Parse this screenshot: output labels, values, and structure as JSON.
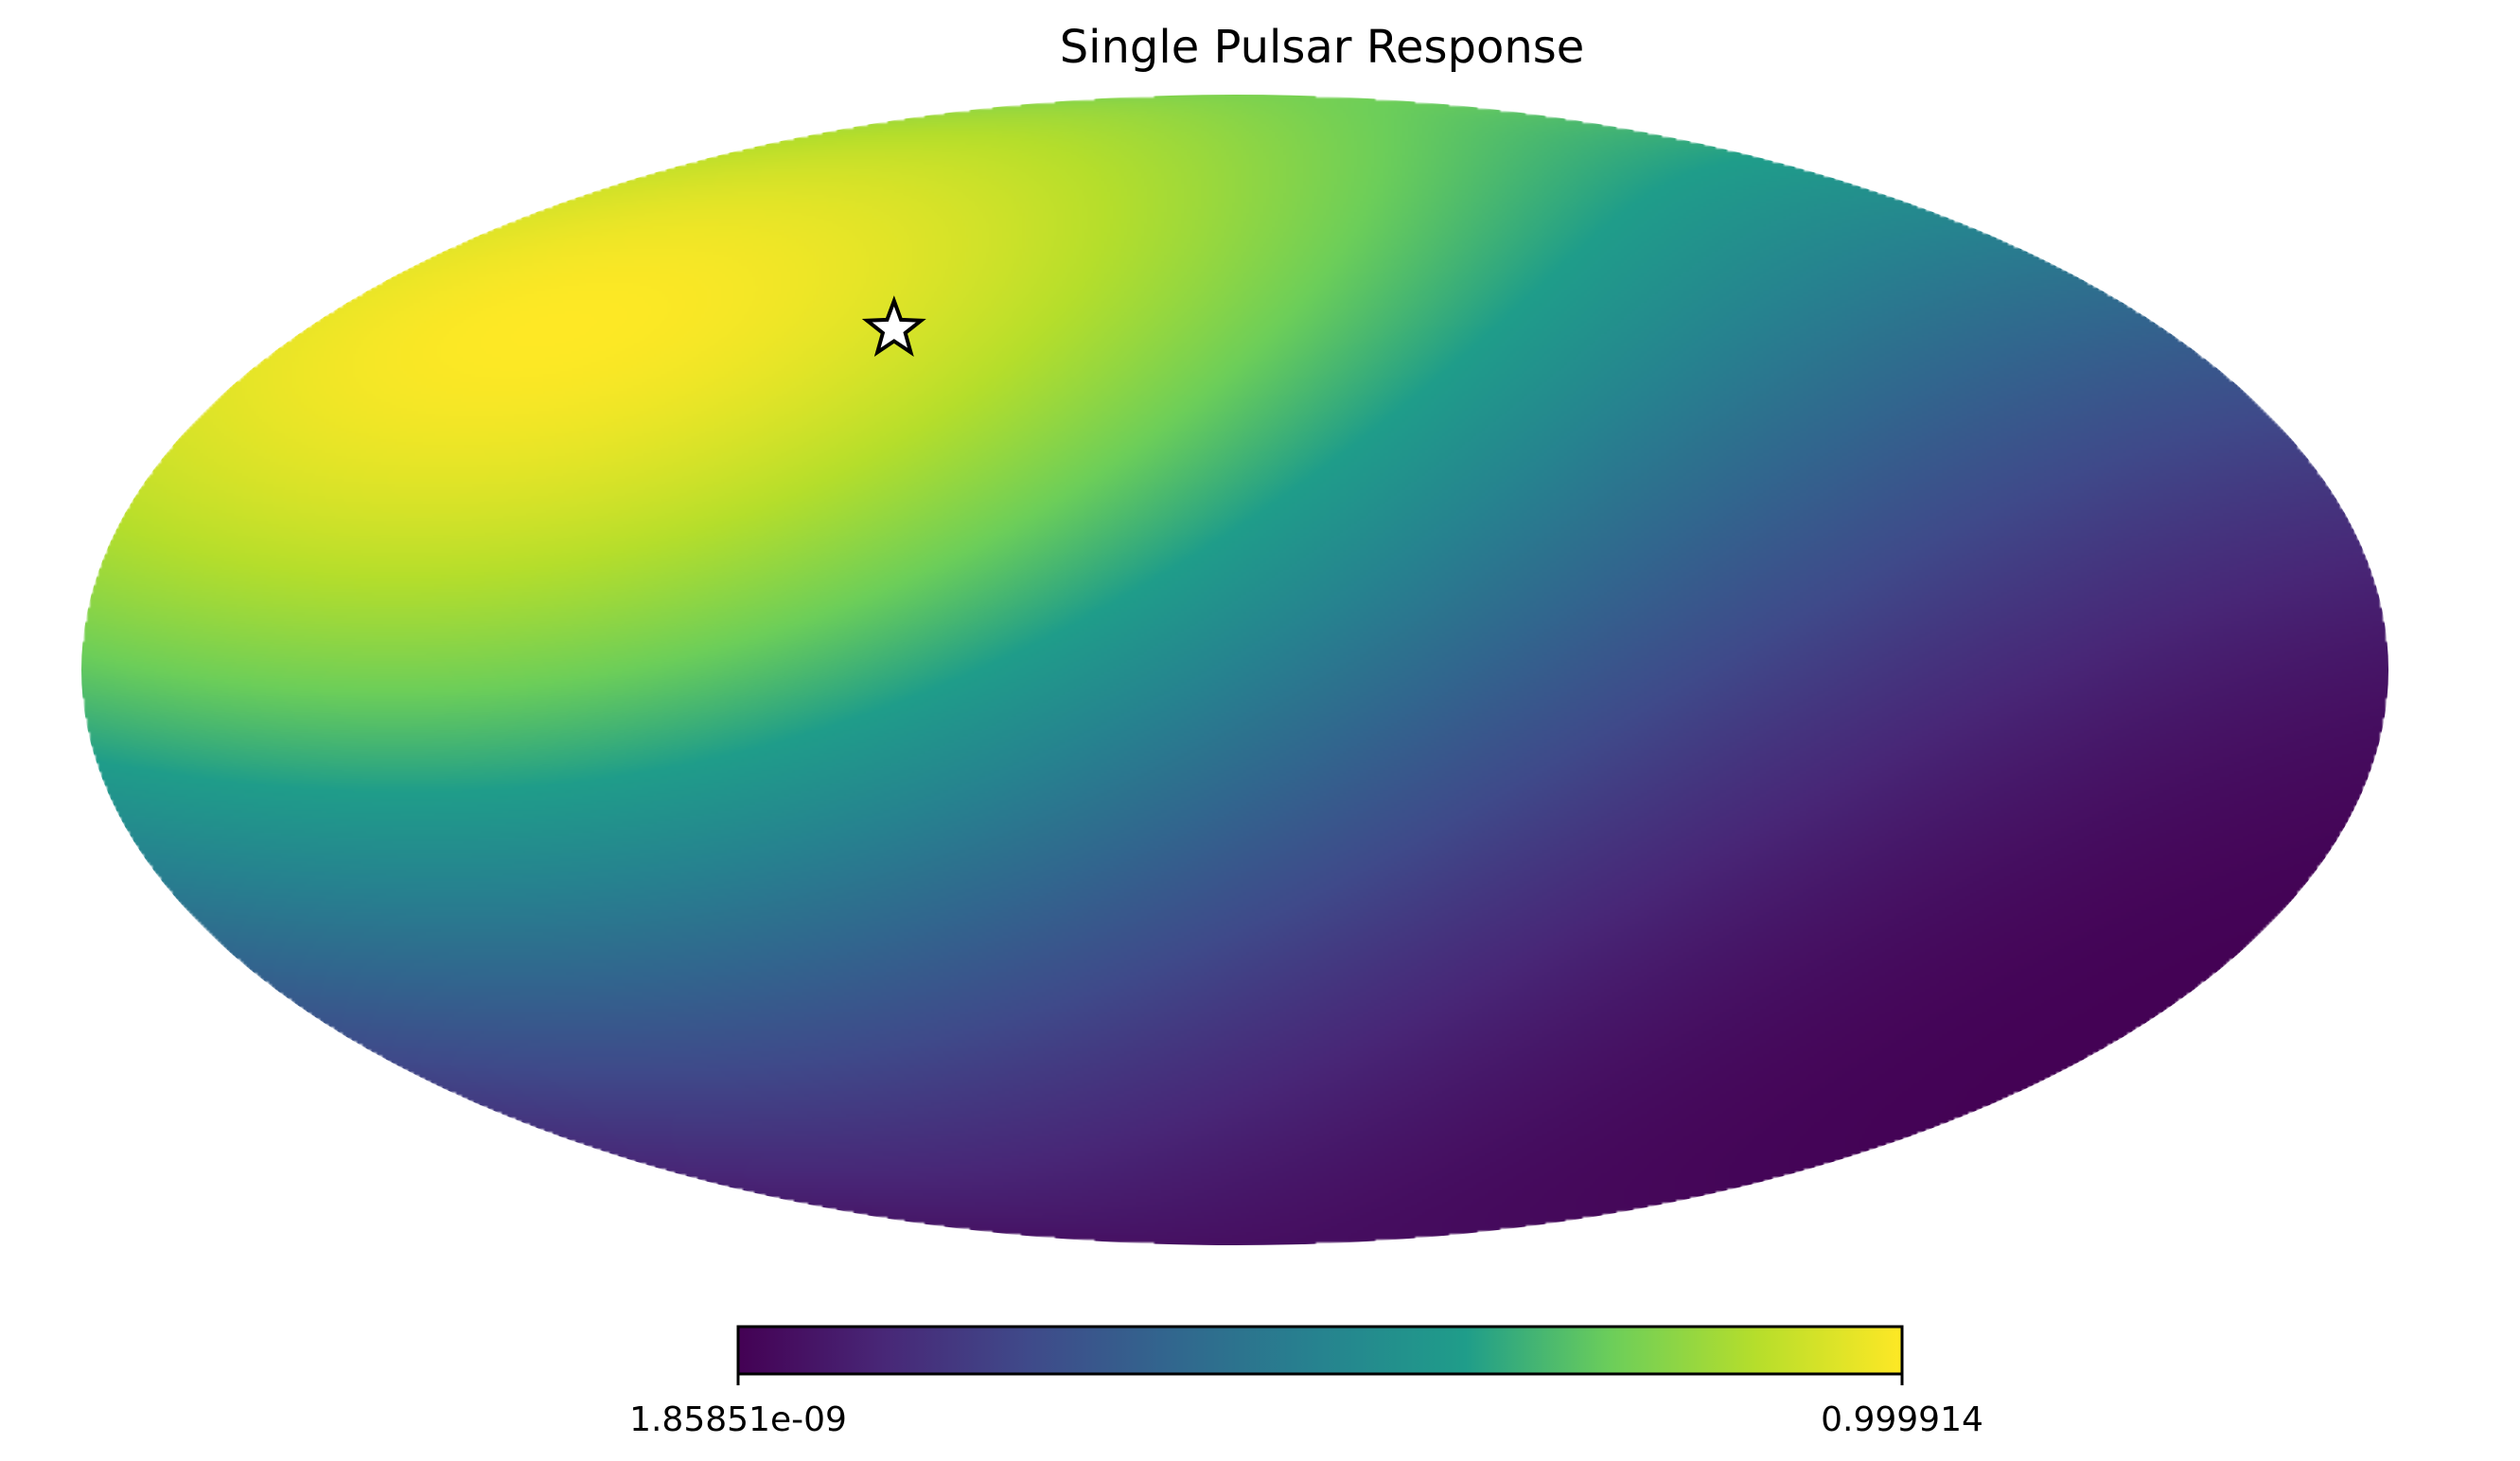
{
  "chart_data": {
    "type": "heatmap",
    "projection": "mollweide",
    "title": "Single Pulsar Response",
    "colormap": "viridis",
    "colormap_stops": [
      "#440154",
      "#482777",
      "#3f4a8a",
      "#31678e",
      "#26838f",
      "#1f9d8a",
      "#6cce5a",
      "#b6de2b",
      "#fee825"
    ],
    "colorbar": {
      "orientation": "horizontal",
      "min_label": "1.85851e-09",
      "max_label": "0.999914",
      "min": 1.85851e-09,
      "max": 0.999914
    },
    "marker": {
      "symbol": "star",
      "fill": "#ffffff",
      "stroke": "#000000",
      "longitude_deg": 66,
      "latitude_deg": 45
    },
    "pattern": {
      "description": "antenna response peaks near the pulsar marker and falls to zero in the opposite hemisphere",
      "peak_longitude_deg": 66,
      "peak_latitude_deg": 45,
      "null_longitude_deg": -114,
      "null_latitude_deg": -45
    }
  }
}
